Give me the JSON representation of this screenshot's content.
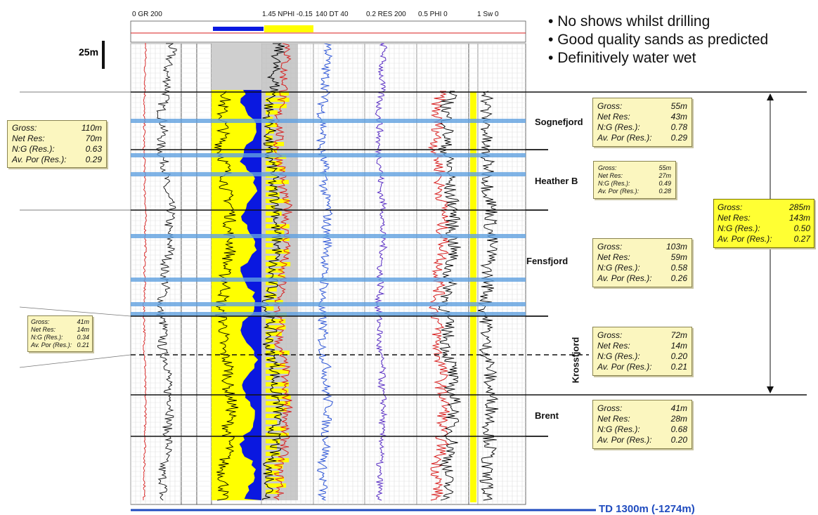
{
  "header": {
    "gr": "0   GR   200",
    "nphi": "1.45 NPHI -0.15",
    "dt": "140   DT   40",
    "res": "0.2  RES  200",
    "phi": "0.5   PHI    0",
    "sw": "1      Sw     0"
  },
  "scale_label": "25m",
  "bullets": [
    "No shows whilst drilling",
    "Good quality sands as predicted",
    "Definitively water wet"
  ],
  "formations": [
    "Sognefjord",
    "Heather B",
    "Fensfjord",
    "Krossfjord",
    "Brent"
  ],
  "boxes": {
    "total_left": [
      [
        "Gross:",
        "110m"
      ],
      [
        "Net Res:",
        "70m"
      ],
      [
        "N:G (Res.):",
        "0.63"
      ],
      [
        "Av. Por (Res.):",
        "0.29"
      ]
    ],
    "small_left": [
      [
        "Gross:",
        "41m"
      ],
      [
        "Net Res:",
        "14m"
      ],
      [
        "N:G (Res.):",
        "0.34"
      ],
      [
        "Av. Por (Res.):",
        "0.21"
      ]
    ],
    "sognefjord": [
      [
        "Gross:",
        "55m"
      ],
      [
        "Net Res:",
        "43m"
      ],
      [
        "N:G (Res.):",
        "0.78"
      ],
      [
        "Av. Por (Res.):",
        "0.29"
      ]
    ],
    "heather": [
      [
        "Gross:",
        "55m"
      ],
      [
        "Net Res:",
        "27m"
      ],
      [
        "N:G (Res.):",
        "0.49"
      ],
      [
        "Av. Por (Res.):",
        "0.28"
      ]
    ],
    "fensfjord": [
      [
        "Gross:",
        "103m"
      ],
      [
        "Net Res:",
        "59m"
      ],
      [
        "N:G (Res.):",
        "0.58"
      ],
      [
        "Av. Por (Res.):",
        "0.26"
      ]
    ],
    "krossfjord": [
      [
        "Gross:",
        "72m"
      ],
      [
        "Net Res:",
        "14m"
      ],
      [
        "N:G (Res.):",
        "0.20"
      ],
      [
        "Av. Por (Res.):",
        "0.21"
      ]
    ],
    "brent": [
      [
        "Gross:",
        "41m"
      ],
      [
        "Net Res:",
        "28m"
      ],
      [
        "N:G (Res.):",
        "0.68"
      ],
      [
        "Av. Por (Res.):",
        "0.20"
      ]
    ],
    "total_right": [
      [
        "Gross:",
        "285m"
      ],
      [
        "Net Res:",
        "143m"
      ],
      [
        "N:G (Res.):",
        "0.50"
      ],
      [
        "Av. Por (Res.):",
        "0.27"
      ]
    ]
  },
  "td_label": "TD 1300m (-1274m)",
  "colors": {
    "gr": "#111111",
    "nphi": "#111111",
    "dt": "#2d55d6",
    "res": "#5a2fc4",
    "phi": "#d81e1e",
    "sand": "#ffff00",
    "shale": "#0a18e0",
    "box": "#fbf6bf",
    "highlight_box": "#ffff33",
    "td": "#1f4bbf"
  }
}
